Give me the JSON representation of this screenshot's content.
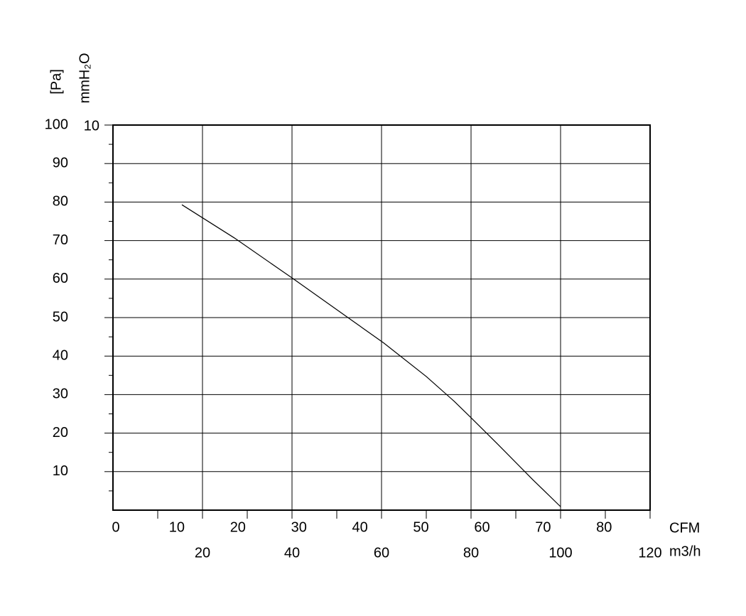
{
  "chart_data": {
    "type": "line",
    "y_label": "[Pa]",
    "y2_label": "mmH₂O",
    "x_label": "m3/h",
    "x2_label": "CFM",
    "x": [
      15.4,
      27.1,
      40,
      52.5,
      60.5,
      70,
      76.3,
      80,
      85.9,
      93.8,
      100
    ],
    "series": [
      {
        "color": "#000000",
        "values": [
          79.3,
          70.7,
          60.3,
          50,
          43.4,
          34.7,
          28.2,
          24,
          17.2,
          7.9,
          0.9
        ]
      }
    ],
    "xlim": [
      0,
      120
    ],
    "xticks": [
      20,
      40,
      60,
      80,
      100,
      120
    ],
    "x2lim": [
      0,
      88
    ],
    "x2ticks": [
      0,
      10,
      20,
      30,
      40,
      50,
      60,
      70,
      80
    ],
    "ylim": [
      0,
      100
    ],
    "yticks": [
      10,
      20,
      30,
      40,
      50,
      60,
      70,
      80,
      90,
      100
    ],
    "y2lim": [
      0,
      10
    ],
    "y2ticks": [
      10
    ],
    "grid": true
  }
}
